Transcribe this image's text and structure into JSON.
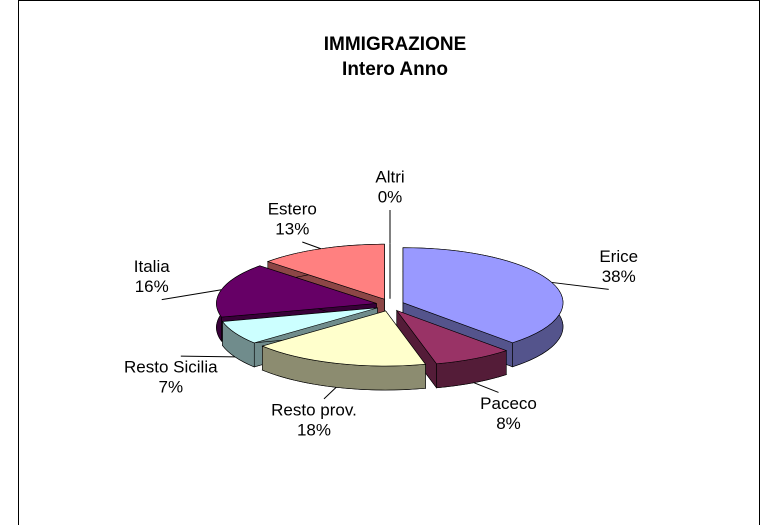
{
  "chart_data": {
    "type": "pie",
    "title": "IMMIGRAZIONE",
    "subtitle": "Intero Anno",
    "categories": [
      "Erice",
      "Paceco",
      "Resto prov.",
      "Resto Sicilia",
      "Italia",
      "Estero",
      "Altri"
    ],
    "values": [
      38,
      8,
      18,
      7,
      16,
      13,
      0
    ],
    "value_labels": [
      "38%",
      "8%",
      "18%",
      "7%",
      "16%",
      "13%",
      "0%"
    ],
    "colors": [
      "#9999ff",
      "#993366",
      "#ffffcc",
      "#ccffff",
      "#660066",
      "#ff8080",
      "#0066cc"
    ]
  }
}
